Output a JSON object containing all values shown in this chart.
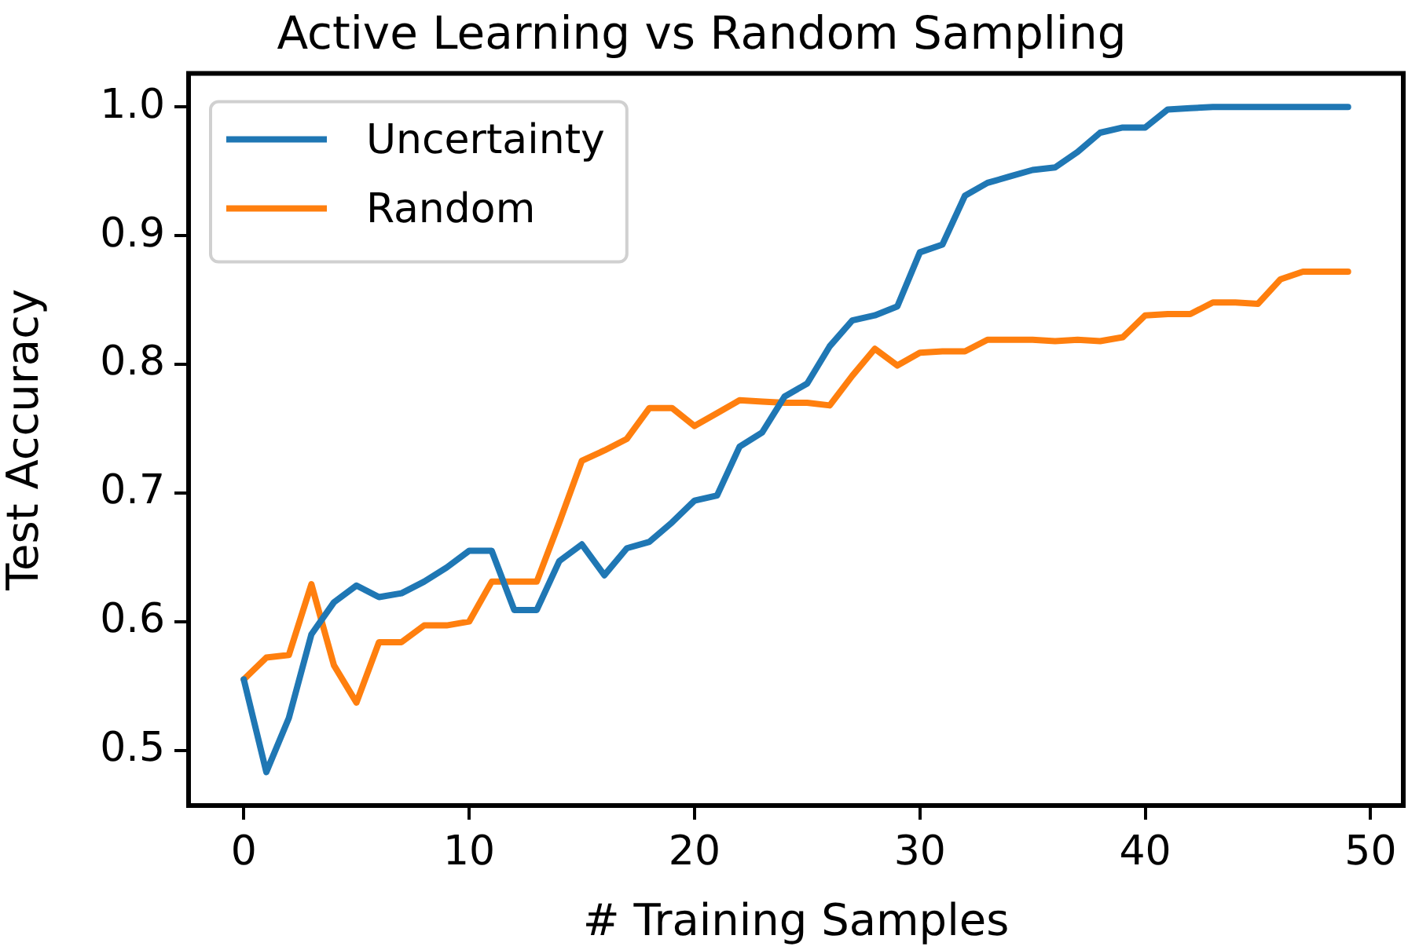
{
  "chart_data": {
    "type": "line",
    "title": "Active Learning vs Random Sampling",
    "xlabel": "# Training Samples",
    "ylabel": "Test Accuracy",
    "x": [
      0,
      1,
      2,
      3,
      4,
      5,
      6,
      7,
      8,
      9,
      10,
      11,
      12,
      13,
      14,
      15,
      16,
      17,
      18,
      19,
      20,
      21,
      22,
      23,
      24,
      25,
      26,
      27,
      28,
      29,
      30,
      31,
      32,
      33,
      34,
      35,
      36,
      37,
      38,
      39,
      40,
      41,
      42,
      43,
      44,
      45,
      46,
      47,
      48,
      49
    ],
    "series": [
      {
        "name": "Uncertainty",
        "color": "#1f77b4",
        "values": [
          0.555,
          0.483,
          0.525,
          0.59,
          0.615,
          0.628,
          0.619,
          0.622,
          0.631,
          0.642,
          0.655,
          0.655,
          0.609,
          0.609,
          0.647,
          0.66,
          0.636,
          0.657,
          0.662,
          0.677,
          0.694,
          0.698,
          0.736,
          0.747,
          0.775,
          0.785,
          0.814,
          0.834,
          0.838,
          0.845,
          0.887,
          0.893,
          0.931,
          0.941,
          0.946,
          0.951,
          0.953,
          0.965,
          0.98,
          0.984,
          0.984,
          0.998,
          0.999,
          1.0,
          1.0,
          1.0,
          1.0,
          1.0,
          1.0,
          1.0
        ]
      },
      {
        "name": "Random",
        "color": "#ff7f0e",
        "values": [
          0.555,
          0.572,
          0.574,
          0.629,
          0.566,
          0.537,
          0.584,
          0.584,
          0.597,
          0.597,
          0.6,
          0.631,
          0.631,
          0.631,
          0.677,
          0.725,
          0.733,
          0.742,
          0.766,
          0.766,
          0.752,
          0.762,
          0.772,
          0.771,
          0.77,
          0.77,
          0.768,
          0.791,
          0.812,
          0.799,
          0.809,
          0.81,
          0.81,
          0.819,
          0.819,
          0.819,
          0.818,
          0.819,
          0.818,
          0.821,
          0.838,
          0.839,
          0.839,
          0.848,
          0.848,
          0.847,
          0.866,
          0.872,
          0.872,
          0.872
        ]
      }
    ],
    "xlim": [
      -2.45,
      51.45
    ],
    "ylim": [
      0.457,
      1.026
    ],
    "xticks": [
      0,
      10,
      20,
      30,
      40,
      50
    ],
    "yticks": [
      {
        "value": 0.5,
        "label": "0.5"
      },
      {
        "value": 0.6,
        "label": "0.6"
      },
      {
        "value": 0.7,
        "label": "0.7"
      },
      {
        "value": 0.8,
        "label": "0.8"
      },
      {
        "value": 0.9,
        "label": "0.9"
      },
      {
        "value": 1.0,
        "label": "1.0"
      }
    ],
    "legend": "top left",
    "grid": false,
    "marker": "none",
    "line_style": "solid"
  }
}
